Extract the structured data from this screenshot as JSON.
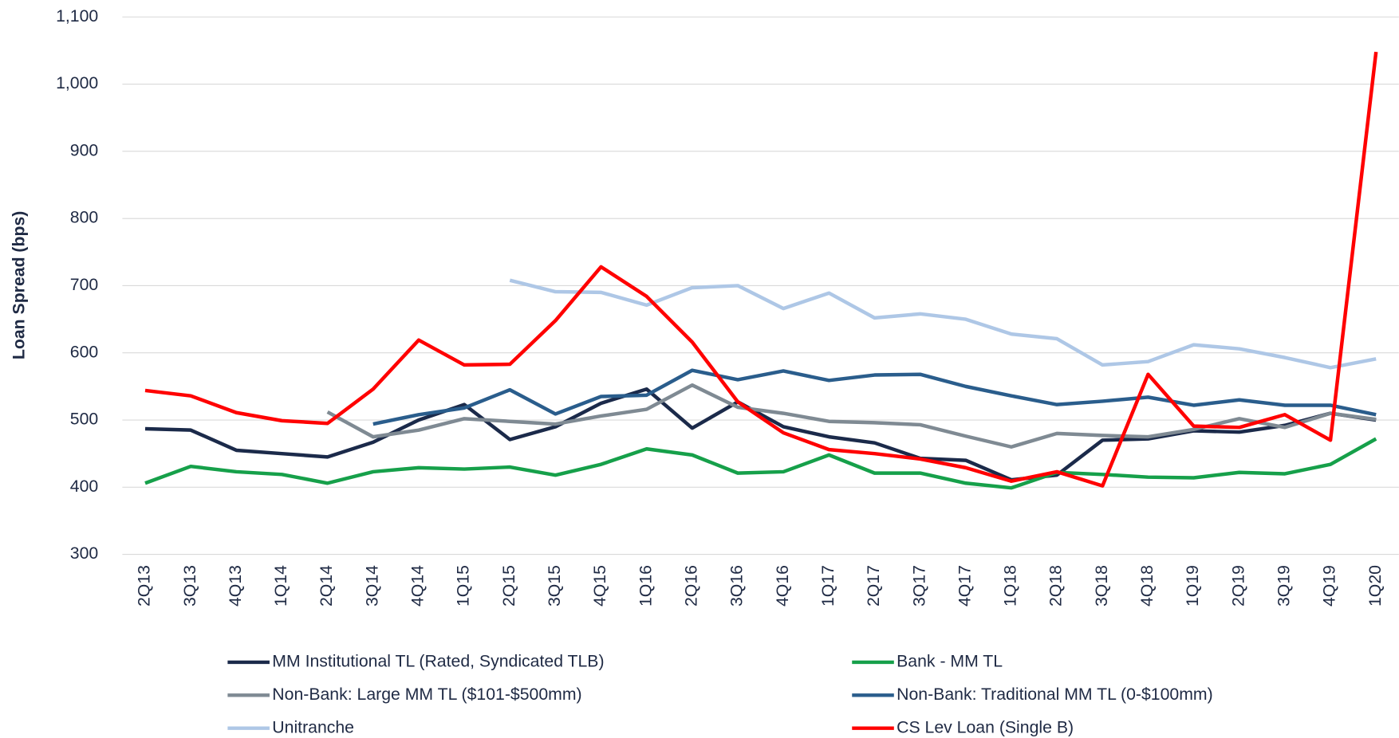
{
  "chart_data": {
    "type": "line",
    "y_label": "Loan Spread (bps)",
    "categories": [
      "2Q13",
      "3Q13",
      "4Q13",
      "1Q14",
      "2Q14",
      "3Q14",
      "4Q14",
      "1Q15",
      "2Q15",
      "3Q15",
      "4Q15",
      "1Q16",
      "2Q16",
      "3Q16",
      "4Q16",
      "1Q17",
      "2Q17",
      "3Q17",
      "4Q17",
      "1Q18",
      "2Q18",
      "3Q18",
      "4Q18",
      "1Q19",
      "2Q19",
      "3Q19",
      "4Q19",
      "1Q20"
    ],
    "ylim": [
      300,
      1100
    ],
    "yticks": [
      300,
      400,
      500,
      600,
      700,
      800,
      900,
      {
        "value": 1000,
        "label": "1,000"
      },
      {
        "value": 1100,
        "label": "1,100"
      }
    ],
    "grid": true,
    "series": [
      {
        "name": "MM Institutional TL (Rated, Syndicated TLB)",
        "color": "#1b2a4a",
        "values": [
          487,
          485,
          455,
          450,
          445,
          467,
          500,
          523,
          471,
          490,
          525,
          546,
          488,
          527,
          490,
          475,
          466,
          443,
          440,
          411,
          418,
          470,
          472,
          484,
          482,
          492,
          510,
          500
        ]
      },
      {
        "name": "Bank - MM TL",
        "color": "#16a04a",
        "values": [
          406,
          431,
          423,
          419,
          406,
          423,
          429,
          427,
          430,
          418,
          434,
          457,
          448,
          421,
          423,
          448,
          421,
          421,
          406,
          399,
          422,
          419,
          415,
          414,
          422,
          420,
          434,
          472
        ]
      },
      {
        "name": "Non-Bank: Large MM TL ($101-$500mm)",
        "color": "#7f8a93",
        "values": [
          null,
          null,
          null,
          null,
          512,
          475,
          485,
          502,
          498,
          494,
          506,
          516,
          552,
          519,
          510,
          498,
          496,
          493,
          476,
          460,
          480,
          477,
          475,
          486,
          502,
          489,
          510,
          501
        ]
      },
      {
        "name": "Non-Bank: Traditional MM TL (0-$100mm)",
        "color": "#2a5d8c",
        "values": [
          null,
          null,
          null,
          null,
          null,
          494,
          508,
          518,
          545,
          509,
          535,
          537,
          574,
          560,
          573,
          559,
          567,
          568,
          550,
          536,
          523,
          528,
          534,
          522,
          530,
          522,
          522,
          508
        ]
      },
      {
        "name": "Unitranche",
        "color": "#aec7e6",
        "values": [
          null,
          null,
          null,
          null,
          null,
          null,
          null,
          null,
          708,
          691,
          690,
          671,
          697,
          700,
          666,
          689,
          652,
          658,
          650,
          628,
          621,
          582,
          587,
          612,
          606,
          593,
          578,
          591
        ]
      },
      {
        "name": "CS Lev Loan (Single B)",
        "color": "#ff0000",
        "values": [
          544,
          536,
          511,
          499,
          495,
          546,
          619,
          582,
          583,
          648,
          728,
          684,
          616,
          527,
          481,
          456,
          450,
          442,
          429,
          409,
          423,
          402,
          568,
          491,
          489,
          508,
          470,
          1048
        ]
      }
    ]
  }
}
